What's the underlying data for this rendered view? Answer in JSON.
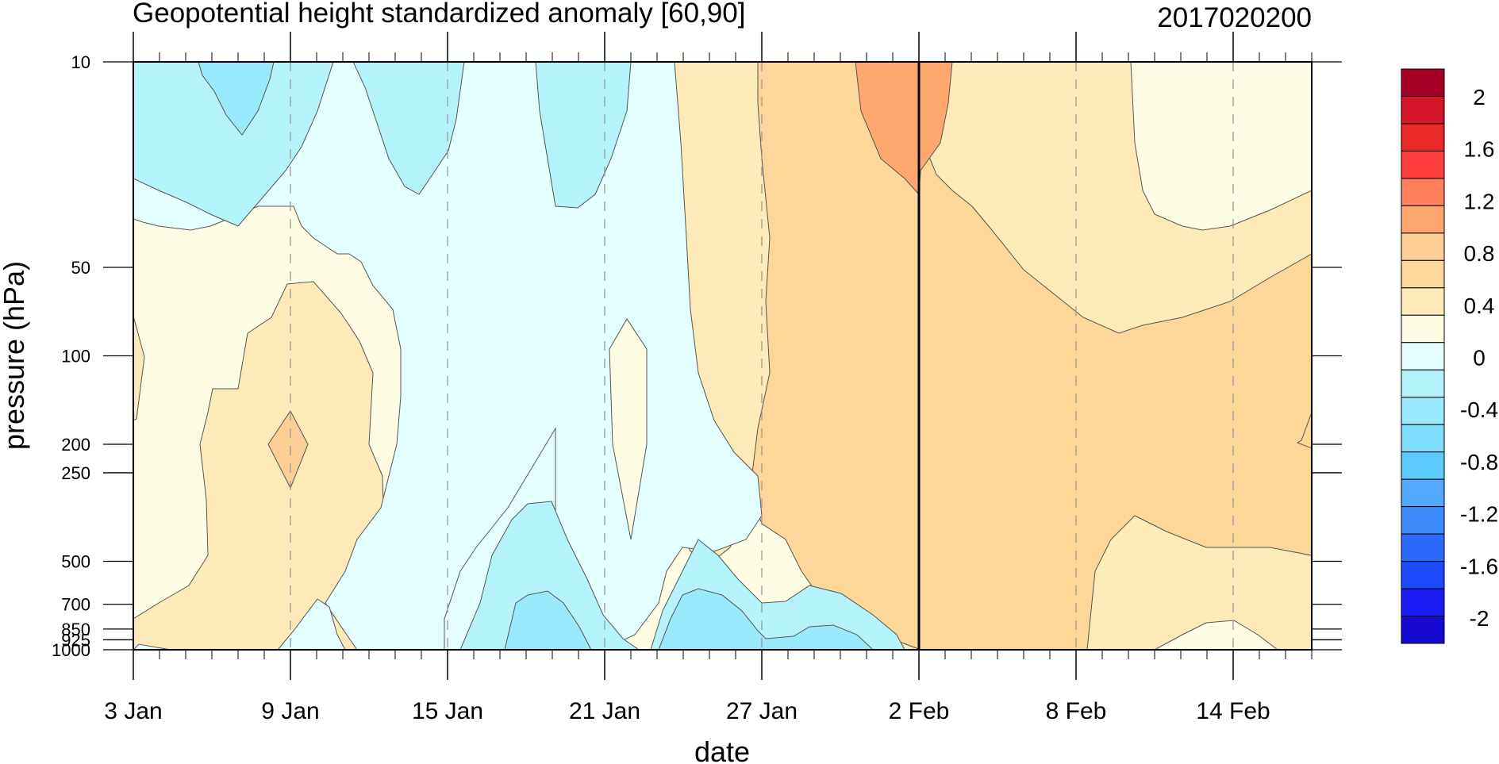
{
  "chart_data": {
    "type": "heatmap",
    "title": "Geopotential height standardized anomaly [60,90]",
    "date_label": "2017020200",
    "xlabel": "date",
    "ylabel": "pressure (hPa)",
    "x_start": "2017-01-03",
    "x_end": "2017-02-17",
    "x_ticks": [
      "3 Jan",
      "9 Jan",
      "15 Jan",
      "21 Jan",
      "27 Jan",
      "2 Feb",
      "8 Feb",
      "14 Feb"
    ],
    "y_scale": "log",
    "y_range": [
      1000,
      10
    ],
    "y_ticks": [
      "10",
      "50",
      "100",
      "200",
      "250",
      "500",
      "700",
      "850",
      "925",
      "1000"
    ],
    "reference_date": "2 Feb",
    "colorbar": {
      "labels": [
        "2",
        "1.6",
        "1.2",
        "0.8",
        "0.4",
        "0",
        "-0.4",
        "-0.8",
        "-1.2",
        "-1.6",
        "-2"
      ],
      "colors": [
        "#a50026",
        "#d2162a",
        "#ea2828",
        "#ff3e3c",
        "#fe7f5a",
        "#fea870",
        "#fdcf97",
        "#fdd79a",
        "#feeab8",
        "#fffce4",
        "#e4ffff",
        "#b4f3fb",
        "#9aeafd",
        "#80dcfc",
        "#5bcafc",
        "#51a8fc",
        "#3e8cfb",
        "#2c6afb",
        "#1e48fb",
        "#1a1bf4",
        "#1508d0"
      ]
    }
  }
}
